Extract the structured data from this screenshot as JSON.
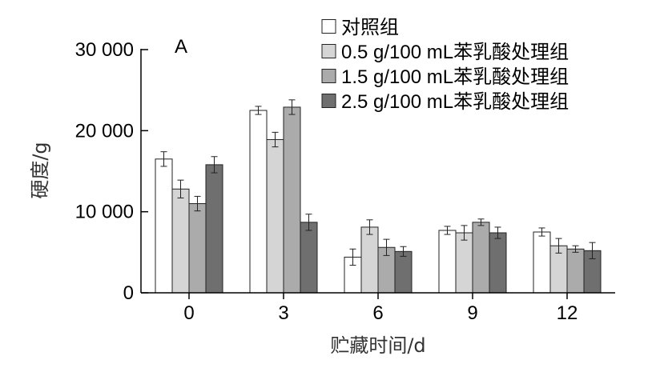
{
  "chart_data": {
    "type": "bar",
    "panel_label": "A",
    "xlabel": "贮藏时间/d",
    "ylabel": "硬度/g",
    "ylim": [
      0,
      30000
    ],
    "yticks": [
      0,
      10000,
      20000,
      30000
    ],
    "ytick_labels": [
      "0",
      "10 000",
      "20 000",
      "30 000"
    ],
    "categories": [
      "0",
      "3",
      "6",
      "9",
      "12"
    ],
    "legend_position": "top-right",
    "error_bars": true,
    "series": [
      {
        "name": "对照组",
        "color": "#ffffff",
        "values": [
          16500,
          22500,
          4400,
          7700,
          7500
        ],
        "errors": [
          900,
          500,
          1000,
          500,
          500
        ]
      },
      {
        "name": "0.5 g/100 mL苯乳酸处理组",
        "color": "#d5d5d5",
        "values": [
          12800,
          18900,
          8100,
          7400,
          5800
        ],
        "errors": [
          1100,
          900,
          900,
          900,
          900
        ]
      },
      {
        "name": "1.5 g/100 mL苯乳酸处理组",
        "color": "#ababab",
        "values": [
          11000,
          22900,
          5600,
          8700,
          5400
        ],
        "errors": [
          900,
          900,
          1000,
          400,
          400
        ]
      },
      {
        "name": "2.5 g/100 mL苯乳酸处理组",
        "color": "#6f6f6f",
        "values": [
          15800,
          8700,
          5100,
          7400,
          5200
        ],
        "errors": [
          1000,
          1000,
          600,
          700,
          1000
        ]
      }
    ]
  }
}
